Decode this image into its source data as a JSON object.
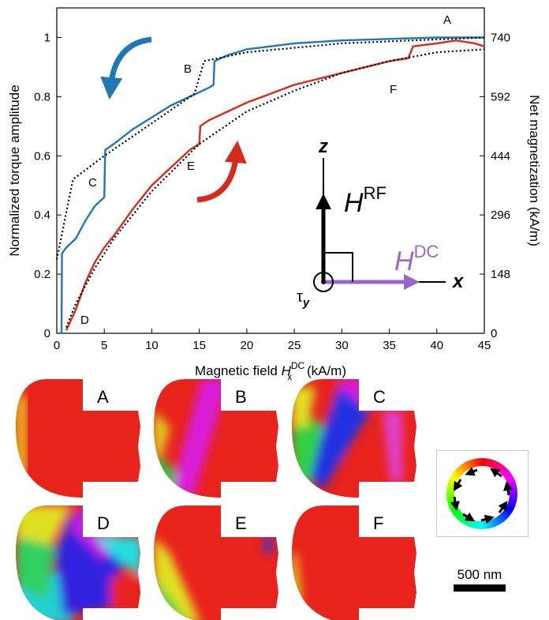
{
  "chart_data": {
    "type": "line",
    "y_label": "Normalized torque amplitude",
    "y2_label": "Net magnetization (kA/m)",
    "x_label": [
      "Magnetic field ",
      "H",
      "DC",
      "x",
      " (kA/m)"
    ],
    "xlim": [
      0,
      45
    ],
    "xticks": [
      0,
      5,
      10,
      15,
      20,
      25,
      30,
      35,
      40,
      45
    ],
    "ylim": [
      0,
      1.1
    ],
    "yticks": [
      0,
      0.2,
      0.4,
      0.6,
      0.8,
      1
    ],
    "y2lim": [
      0,
      814
    ],
    "y2ticks": [
      0,
      148,
      296,
      444,
      592,
      740
    ],
    "series": [
      {
        "color": "#1f77b4",
        "style": "solid",
        "x": [
          0.5,
          0.55,
          1,
          2,
          3,
          4,
          5,
          5.1,
          6,
          8,
          10,
          12,
          14,
          16,
          16.5,
          16.6,
          18,
          20,
          25,
          30,
          35,
          40,
          45
        ],
        "values": [
          0,
          0.27,
          0.29,
          0.32,
          0.38,
          0.43,
          0.46,
          0.62,
          0.64,
          0.69,
          0.73,
          0.77,
          0.8,
          0.83,
          0.84,
          0.92,
          0.94,
          0.96,
          0.98,
          0.99,
          0.995,
          1.0,
          1.0
        ]
      },
      {
        "color": "#d62a1a",
        "style": "solid",
        "x": [
          1,
          2,
          3,
          4,
          5,
          6,
          8,
          10,
          12,
          14,
          15,
          15.1,
          16,
          18,
          20,
          25,
          30,
          35,
          37,
          37.5,
          40,
          42,
          44,
          45
        ],
        "values": [
          0.01,
          0.08,
          0.17,
          0.24,
          0.29,
          0.33,
          0.42,
          0.5,
          0.56,
          0.62,
          0.64,
          0.7,
          0.72,
          0.75,
          0.78,
          0.84,
          0.88,
          0.92,
          0.93,
          0.97,
          0.98,
          0.99,
          0.98,
          0.97
        ]
      },
      {
        "color": "#000000",
        "style": "dotted",
        "x": [
          1,
          2,
          4,
          6,
          10,
          15,
          20,
          25,
          30,
          35,
          40,
          45
        ],
        "values": [
          0.02,
          0.1,
          0.22,
          0.32,
          0.48,
          0.64,
          0.75,
          0.82,
          0.88,
          0.92,
          0.95,
          0.96
        ]
      },
      {
        "color": "#000000",
        "style": "dotted",
        "x": [
          0,
          1.7,
          5,
          10,
          14.5,
          15.5,
          20,
          30,
          45
        ],
        "values": [
          0.25,
          0.52,
          0.6,
          0.71,
          0.81,
          0.92,
          0.95,
          0.98,
          1.0
        ]
      }
    ],
    "annotations": [
      "A",
      "B",
      "C",
      "D",
      "E",
      "F"
    ],
    "inset": {
      "z": "z",
      "x": "x",
      "h_rf": [
        "H",
        "RF"
      ],
      "h_dc": [
        "H",
        "DC"
      ],
      "tau": [
        "τ",
        "y"
      ]
    }
  },
  "panels": [
    "A",
    "B",
    "C",
    "D",
    "E",
    "F"
  ],
  "scale_bar": "500 nm"
}
